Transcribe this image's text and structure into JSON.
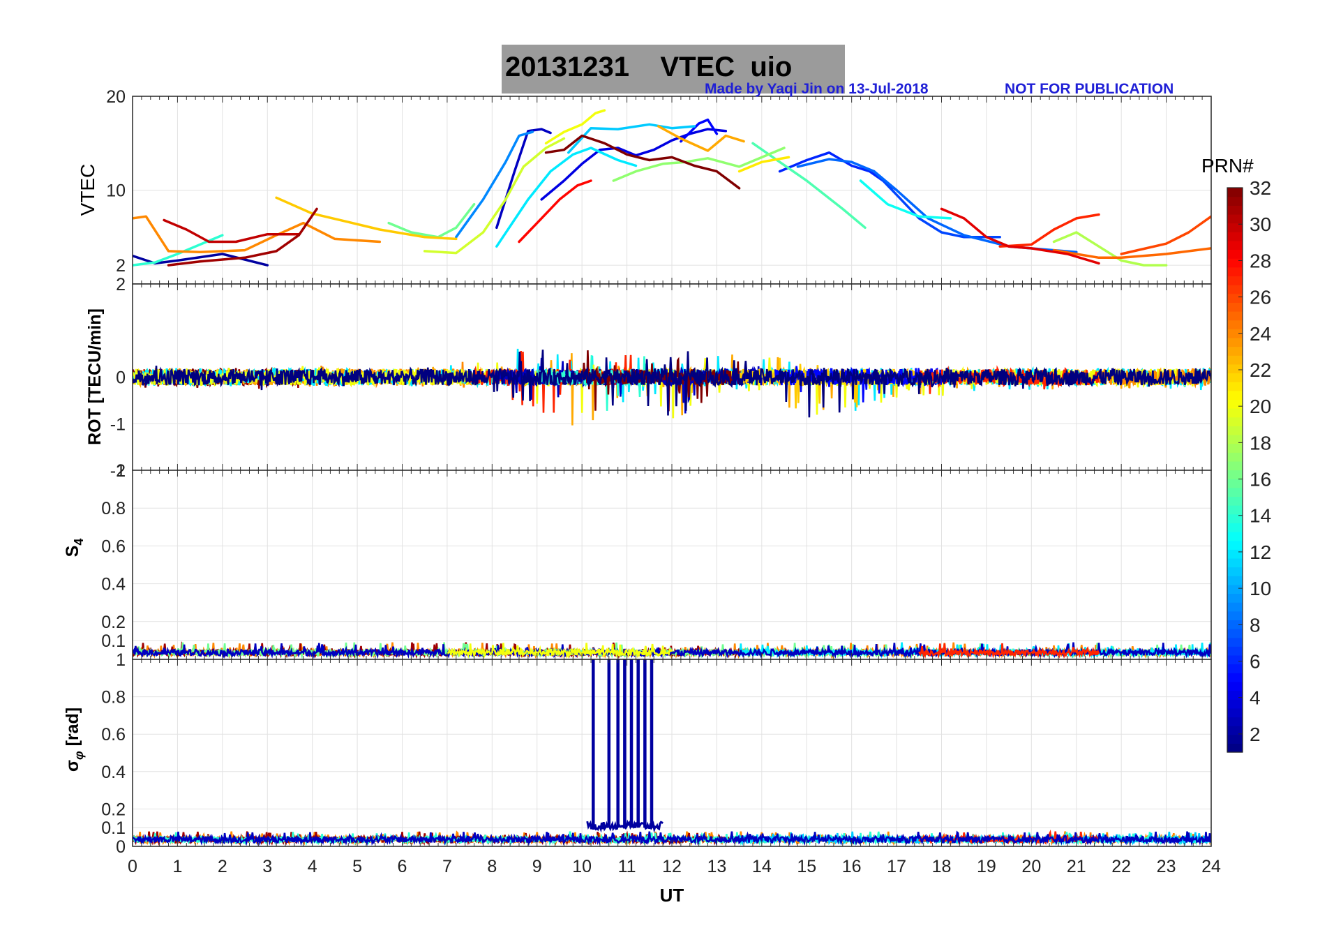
{
  "figure": {
    "date": "20131231",
    "quantity": "VTEC",
    "station": "uio",
    "credit": "Made by Yaqi Jin on 13-Jul-2018",
    "notice": "NOT FOR PUBLICATION"
  },
  "colorbar": {
    "label": "PRN#",
    "ticks": [
      "2",
      "4",
      "6",
      "8",
      "10",
      "12",
      "14",
      "16",
      "18",
      "20",
      "22",
      "24",
      "26",
      "28",
      "30",
      "32"
    ],
    "range": [
      1,
      32
    ],
    "colormap": "jet"
  },
  "x_axis": {
    "label": "UT",
    "ticks": [
      "0",
      "1",
      "2",
      "3",
      "4",
      "5",
      "6",
      "7",
      "8",
      "9",
      "10",
      "11",
      "12",
      "13",
      "14",
      "15",
      "16",
      "17",
      "18",
      "19",
      "20",
      "21",
      "22",
      "23",
      "24"
    ],
    "range": [
      0,
      24
    ]
  },
  "chart_data": [
    {
      "type": "line",
      "panel": "VTEC",
      "ylabel": "VTEC",
      "ylim": [
        0,
        20
      ],
      "yticks": [
        "2",
        "10",
        "20"
      ],
      "grid": true,
      "series": [
        {
          "prn": 2,
          "x": [
            0,
            0.5,
            1,
            2,
            3
          ],
          "y": [
            3,
            2.2,
            2.5,
            3.2,
            2
          ]
        },
        {
          "prn": 3,
          "x": [
            8.1,
            8.5,
            8.8,
            9.1,
            9.3
          ],
          "y": [
            6,
            12,
            16.3,
            16.5,
            16.1
          ]
        },
        {
          "prn": 4,
          "x": [
            9.1,
            9.6,
            10,
            10.4,
            10.8,
            11.2,
            11.6,
            12,
            12.4,
            12.8,
            13.2
          ],
          "y": [
            9,
            11,
            12.8,
            14.3,
            14.5,
            13.7,
            14.3,
            15.3,
            16,
            16.5,
            16.3
          ]
        },
        {
          "prn": 5,
          "x": [
            12.2,
            12.6,
            12.8,
            13
          ],
          "y": [
            15.2,
            17.1,
            17.5,
            16
          ]
        },
        {
          "prn": 6,
          "x": [
            14.4,
            15,
            15.5,
            16,
            16.4,
            17
          ],
          "y": [
            12,
            13.2,
            14,
            12.6,
            12,
            10
          ]
        },
        {
          "prn": 7,
          "x": [
            16.5,
            17,
            17.5,
            18,
            18.5,
            19.3
          ],
          "y": [
            12,
            9.5,
            7,
            5.5,
            5,
            5
          ]
        },
        {
          "prn": 8,
          "x": [
            14.8,
            15.5,
            16,
            16.5,
            17,
            17.7,
            18.5,
            19.5,
            20.5,
            21
          ],
          "y": [
            12.5,
            13.3,
            13,
            12,
            10,
            7,
            5.2,
            4,
            3.6,
            3.4
          ]
        },
        {
          "prn": 9,
          "x": [
            7.2,
            7.8,
            8.3,
            8.6,
            8.9
          ],
          "y": [
            5,
            9,
            13,
            15.8,
            16.2
          ]
        },
        {
          "prn": 11,
          "x": [
            9.7,
            10.2,
            10.8,
            11.5,
            12,
            12.5
          ],
          "y": [
            14,
            16.6,
            16.5,
            17,
            16.6,
            16.8
          ]
        },
        {
          "prn": 12,
          "x": [
            8.1,
            8.8,
            9.3,
            9.8,
            10.2,
            10.8,
            11.2
          ],
          "y": [
            4,
            9,
            12,
            13.8,
            14.5,
            13.2,
            12.6
          ]
        },
        {
          "prn": 13,
          "x": [
            16.2,
            16.8,
            17.5,
            18.2
          ],
          "y": [
            11,
            8.5,
            7.2,
            7
          ]
        },
        {
          "prn": 14,
          "x": [
            0,
            0.5,
            1,
            1.5,
            2
          ],
          "y": [
            2,
            2.3,
            3.2,
            4.2,
            5.2
          ]
        },
        {
          "prn": 15,
          "x": [
            13.8,
            14.4,
            15,
            15.8,
            16.3
          ],
          "y": [
            15,
            13,
            11,
            8,
            6
          ]
        },
        {
          "prn": 16,
          "x": [
            5.7,
            6.2,
            6.8,
            7.2,
            7.6
          ],
          "y": [
            6.5,
            5.5,
            5,
            6,
            8.5
          ]
        },
        {
          "prn": 17,
          "x": [
            10.7,
            11.2,
            11.8,
            12.3,
            12.8,
            13.5,
            14.5
          ],
          "y": [
            11,
            12,
            12.8,
            13,
            13.4,
            12.5,
            14.5
          ]
        },
        {
          "prn": 18,
          "x": [
            20.5,
            21,
            21.5,
            22,
            22.5,
            23
          ],
          "y": [
            4.5,
            5.5,
            4,
            2.5,
            2,
            2
          ]
        },
        {
          "prn": 19,
          "x": [
            6.5,
            7.2,
            7.8,
            8.3,
            8.7,
            9.2,
            9.6
          ],
          "y": [
            3.5,
            3.3,
            5.5,
            9,
            12.5,
            14.5,
            15.5
          ]
        },
        {
          "prn": 20,
          "x": [
            9.2,
            9.6,
            10,
            10.3,
            10.5
          ],
          "y": [
            15,
            16.2,
            17,
            18.2,
            18.5
          ]
        },
        {
          "prn": 21,
          "x": [
            13.5,
            14,
            14.6
          ],
          "y": [
            12,
            13,
            13.5
          ]
        },
        {
          "prn": 22,
          "x": [
            3.2,
            4,
            4.8,
            5.5,
            6.5,
            7.2
          ],
          "y": [
            9.2,
            7.5,
            6.6,
            5.8,
            5,
            4.8
          ]
        },
        {
          "prn": 23,
          "x": [
            11.7,
            12.2,
            12.8,
            13.2,
            13.6
          ],
          "y": [
            16.8,
            15.5,
            14.2,
            15.8,
            15.2
          ]
        },
        {
          "prn": 24,
          "x": [
            0,
            0.3,
            0.8,
            1.5,
            2.5,
            3.2,
            3.8,
            4.5,
            5.5
          ],
          "y": [
            7,
            7.2,
            3.5,
            3.4,
            3.6,
            5.2,
            6.5,
            4.8,
            4.5
          ]
        },
        {
          "prn": 25,
          "x": [
            20.5,
            21,
            21.5,
            22,
            23,
            24
          ],
          "y": [
            3.6,
            3.2,
            2.8,
            2.8,
            3.2,
            3.8
          ]
        },
        {
          "prn": 26,
          "x": [
            22,
            23,
            23.5,
            24
          ],
          "y": [
            3.2,
            4.3,
            5.5,
            7.2
          ]
        },
        {
          "prn": 27,
          "x": [
            19.3,
            20,
            20.5,
            21,
            21.5
          ],
          "y": [
            4,
            4.2,
            5.8,
            7,
            7.4
          ]
        },
        {
          "prn": 28,
          "x": [
            8.6,
            9.1,
            9.5,
            9.9,
            10.2
          ],
          "y": [
            4.5,
            7,
            9,
            10.5,
            11
          ]
        },
        {
          "prn": 29,
          "x": [
            18,
            18.5,
            19,
            19.5,
            20,
            20.8,
            21.5
          ],
          "y": [
            8,
            7,
            5,
            4,
            3.8,
            3.2,
            2.2
          ]
        },
        {
          "prn": 30,
          "x": [
            0.7,
            1.2,
            1.7,
            2.3,
            3,
            3.7
          ],
          "y": [
            6.8,
            5.8,
            4.5,
            4.5,
            5.3,
            5.3
          ]
        },
        {
          "prn": 31,
          "x": [
            0.8,
            1.5,
            2.5,
            3.2,
            3.7,
            4.1
          ],
          "y": [
            2,
            2.4,
            2.8,
            3.5,
            5.2,
            8
          ]
        },
        {
          "prn": 32,
          "x": [
            9.2,
            9.6,
            10,
            10.5,
            11,
            11.5,
            12,
            12.5,
            13,
            13.5
          ],
          "y": [
            14,
            14.3,
            15.8,
            15,
            13.8,
            13.2,
            13.5,
            12.6,
            12,
            10.2
          ]
        }
      ]
    },
    {
      "type": "line",
      "panel": "ROT",
      "ylabel": "ROT [TECU/min]",
      "ylim": [
        -2,
        2
      ],
      "yticks": [
        "-2",
        "-1",
        "0",
        "2"
      ],
      "grid": true,
      "description": "dense fluctuations around 0 for all PRNs; largest excursions between 8 and 16 UT",
      "envelope": {
        "x": [
          0,
          1,
          2,
          3,
          4,
          5,
          6,
          7,
          8,
          9,
          10,
          11,
          12,
          13,
          14,
          15,
          16,
          17,
          18,
          19,
          20,
          21,
          22,
          23,
          24
        ],
        "upper": [
          0.3,
          0.2,
          0.2,
          0.2,
          0.35,
          0.15,
          0.15,
          0.3,
          0.5,
          0.7,
          0.6,
          0.5,
          0.6,
          0.6,
          0.5,
          0.3,
          0.25,
          0.2,
          0.2,
          0.2,
          0.2,
          0.2,
          0.2,
          0.2,
          0.3
        ],
        "lower": [
          -0.25,
          -0.3,
          -0.2,
          -0.3,
          -0.2,
          -0.2,
          -0.2,
          -0.2,
          -0.3,
          -0.8,
          -1.15,
          -0.5,
          -0.95,
          -0.4,
          -0.35,
          -0.9,
          -0.75,
          -0.5,
          -0.45,
          -0.3,
          -0.3,
          -0.25,
          -0.25,
          -0.25,
          -0.3
        ]
      }
    },
    {
      "type": "line",
      "panel": "S4",
      "ylabel": "S4",
      "ylim": [
        0,
        1
      ],
      "yticks": [
        "0.1",
        "0.2",
        "0.4",
        "0.6",
        "0.8",
        "1"
      ],
      "grid": true,
      "description": "all PRNs stay below about 0.1",
      "range": [
        0.02,
        0.09
      ]
    },
    {
      "type": "line",
      "panel": "sigma_phi",
      "ylabel": "σφ [rad]",
      "ylim": [
        0,
        1
      ],
      "yticks": [
        "0",
        "0.1",
        "0.2",
        "0.4",
        "0.6",
        "0.8",
        "1"
      ],
      "grid": true,
      "baseline_range": [
        0.02,
        0.08
      ],
      "spikes": {
        "prn": 2,
        "x": [
          10.25,
          10.6,
          10.8,
          10.95,
          11.1,
          11.25,
          11.4,
          11.55
        ],
        "y": 1.0
      }
    }
  ]
}
